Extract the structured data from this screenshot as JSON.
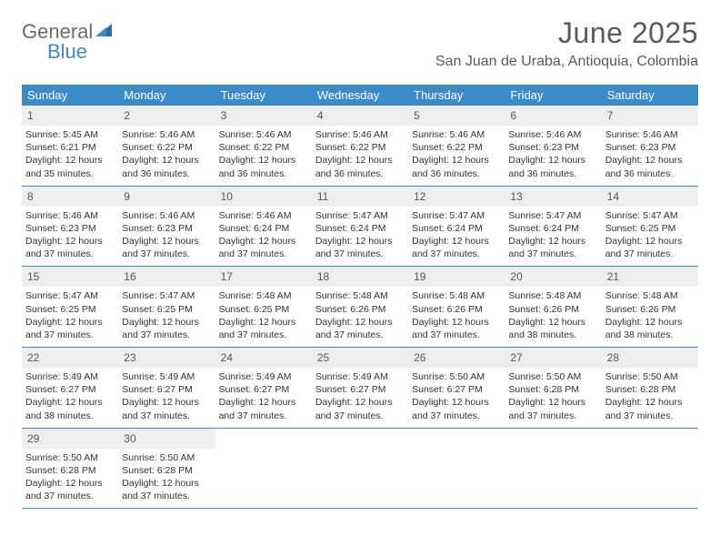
{
  "logo": {
    "word1": "General",
    "word2": "Blue",
    "icon_color": "#2f6aa8"
  },
  "title": "June 2025",
  "location": "San Juan de Uraba, Antioquia, Colombia",
  "colors": {
    "header_bar": "#3b8bc9",
    "daynum_bg": "#eeeeee",
    "text": "#333333",
    "title_text": "#5a5a5a"
  },
  "weekdays": [
    "Sunday",
    "Monday",
    "Tuesday",
    "Wednesday",
    "Thursday",
    "Friday",
    "Saturday"
  ],
  "weeks": [
    [
      {
        "n": "1",
        "sr": "5:45 AM",
        "ss": "6:21 PM",
        "dl": "12 hours and 35 minutes."
      },
      {
        "n": "2",
        "sr": "5:46 AM",
        "ss": "6:22 PM",
        "dl": "12 hours and 36 minutes."
      },
      {
        "n": "3",
        "sr": "5:46 AM",
        "ss": "6:22 PM",
        "dl": "12 hours and 36 minutes."
      },
      {
        "n": "4",
        "sr": "5:46 AM",
        "ss": "6:22 PM",
        "dl": "12 hours and 36 minutes."
      },
      {
        "n": "5",
        "sr": "5:46 AM",
        "ss": "6:22 PM",
        "dl": "12 hours and 36 minutes."
      },
      {
        "n": "6",
        "sr": "5:46 AM",
        "ss": "6:23 PM",
        "dl": "12 hours and 36 minutes."
      },
      {
        "n": "7",
        "sr": "5:46 AM",
        "ss": "6:23 PM",
        "dl": "12 hours and 36 minutes."
      }
    ],
    [
      {
        "n": "8",
        "sr": "5:46 AM",
        "ss": "6:23 PM",
        "dl": "12 hours and 37 minutes."
      },
      {
        "n": "9",
        "sr": "5:46 AM",
        "ss": "6:23 PM",
        "dl": "12 hours and 37 minutes."
      },
      {
        "n": "10",
        "sr": "5:46 AM",
        "ss": "6:24 PM",
        "dl": "12 hours and 37 minutes."
      },
      {
        "n": "11",
        "sr": "5:47 AM",
        "ss": "6:24 PM",
        "dl": "12 hours and 37 minutes."
      },
      {
        "n": "12",
        "sr": "5:47 AM",
        "ss": "6:24 PM",
        "dl": "12 hours and 37 minutes."
      },
      {
        "n": "13",
        "sr": "5:47 AM",
        "ss": "6:24 PM",
        "dl": "12 hours and 37 minutes."
      },
      {
        "n": "14",
        "sr": "5:47 AM",
        "ss": "6:25 PM",
        "dl": "12 hours and 37 minutes."
      }
    ],
    [
      {
        "n": "15",
        "sr": "5:47 AM",
        "ss": "6:25 PM",
        "dl": "12 hours and 37 minutes."
      },
      {
        "n": "16",
        "sr": "5:47 AM",
        "ss": "6:25 PM",
        "dl": "12 hours and 37 minutes."
      },
      {
        "n": "17",
        "sr": "5:48 AM",
        "ss": "6:25 PM",
        "dl": "12 hours and 37 minutes."
      },
      {
        "n": "18",
        "sr": "5:48 AM",
        "ss": "6:26 PM",
        "dl": "12 hours and 37 minutes."
      },
      {
        "n": "19",
        "sr": "5:48 AM",
        "ss": "6:26 PM",
        "dl": "12 hours and 37 minutes."
      },
      {
        "n": "20",
        "sr": "5:48 AM",
        "ss": "6:26 PM",
        "dl": "12 hours and 38 minutes."
      },
      {
        "n": "21",
        "sr": "5:48 AM",
        "ss": "6:26 PM",
        "dl": "12 hours and 38 minutes."
      }
    ],
    [
      {
        "n": "22",
        "sr": "5:49 AM",
        "ss": "6:27 PM",
        "dl": "12 hours and 38 minutes."
      },
      {
        "n": "23",
        "sr": "5:49 AM",
        "ss": "6:27 PM",
        "dl": "12 hours and 37 minutes."
      },
      {
        "n": "24",
        "sr": "5:49 AM",
        "ss": "6:27 PM",
        "dl": "12 hours and 37 minutes."
      },
      {
        "n": "25",
        "sr": "5:49 AM",
        "ss": "6:27 PM",
        "dl": "12 hours and 37 minutes."
      },
      {
        "n": "26",
        "sr": "5:50 AM",
        "ss": "6:27 PM",
        "dl": "12 hours and 37 minutes."
      },
      {
        "n": "27",
        "sr": "5:50 AM",
        "ss": "6:28 PM",
        "dl": "12 hours and 37 minutes."
      },
      {
        "n": "28",
        "sr": "5:50 AM",
        "ss": "6:28 PM",
        "dl": "12 hours and 37 minutes."
      }
    ],
    [
      {
        "n": "29",
        "sr": "5:50 AM",
        "ss": "6:28 PM",
        "dl": "12 hours and 37 minutes."
      },
      {
        "n": "30",
        "sr": "5:50 AM",
        "ss": "6:28 PM",
        "dl": "12 hours and 37 minutes."
      },
      null,
      null,
      null,
      null,
      null
    ]
  ],
  "labels": {
    "sunrise": "Sunrise:",
    "sunset": "Sunset:",
    "daylight": "Daylight:"
  }
}
